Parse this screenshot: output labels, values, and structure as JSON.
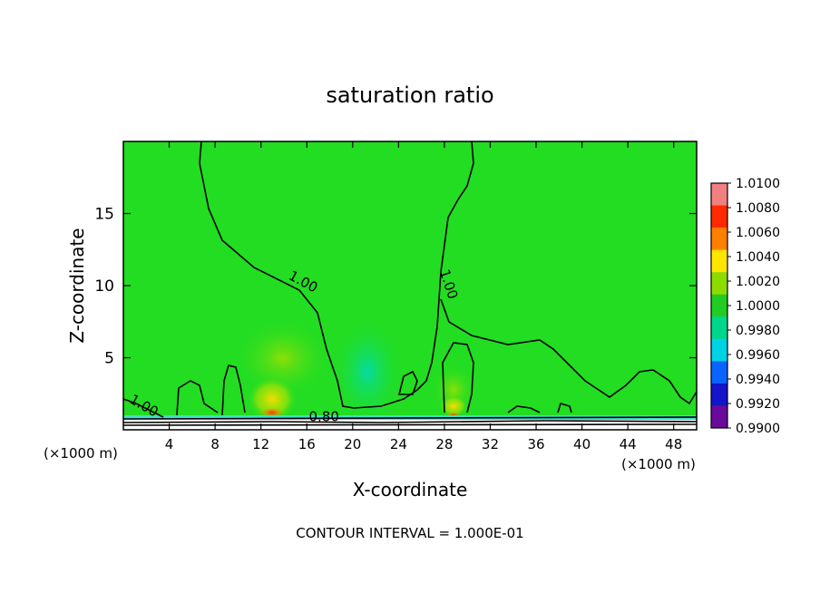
{
  "chart_data": {
    "type": "heatmap",
    "title": "saturation ratio",
    "xlabel": "X-coordinate",
    "ylabel": "Z-coordinate",
    "x_unit_left": "(×1000 m)",
    "x_unit_right": "(×1000 m)",
    "xlim": [
      0,
      50
    ],
    "ylim": [
      0,
      20
    ],
    "x_ticks": [
      4,
      8,
      12,
      16,
      20,
      24,
      28,
      32,
      36,
      40,
      44,
      48
    ],
    "y_ticks": [
      5,
      10,
      15
    ],
    "colorbar": {
      "labels": [
        "1.0100",
        "1.0080",
        "1.0060",
        "1.0040",
        "1.0020",
        "1.0000",
        "0.9980",
        "0.9960",
        "0.9940",
        "0.9920",
        "0.9900"
      ],
      "colors": [
        "#f08080",
        "#ff2a00",
        "#ff7f00",
        "#ffe600",
        "#8cdc00",
        "#22cc22",
        "#00d68c",
        "#00d2e6",
        "#0a64ff",
        "#1414c8",
        "#6a0a9c"
      ]
    },
    "background_color": "#22dd22",
    "contour_labels": [
      {
        "text": "1.00",
        "x": 15.5,
        "z": 10.0,
        "rotate": 28
      },
      {
        "text": "1.00",
        "x": 28.0,
        "z": 10.0,
        "rotate": 72
      },
      {
        "text": "1.00",
        "x": 1.6,
        "z": 1.4,
        "rotate": 30
      },
      {
        "text": "0.80",
        "x": 17.5,
        "z": 0.6,
        "rotate": 0
      }
    ],
    "footer": "CONTOUR INTERVAL = 1.000E-01"
  }
}
